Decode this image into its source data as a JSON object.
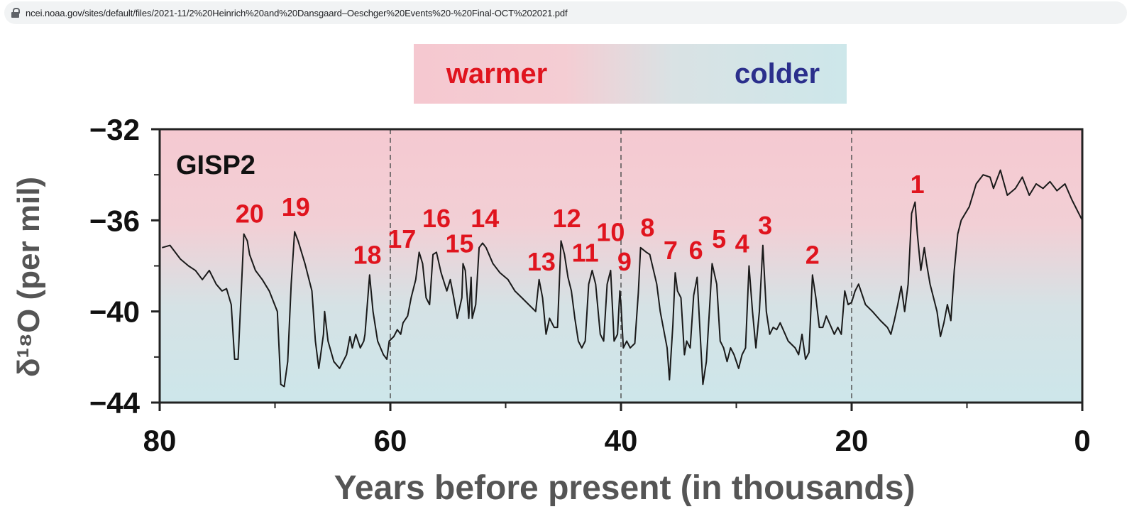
{
  "browser": {
    "url": "ncei.noaa.gov/sites/default/files/2021-11/2%20Heinrich%20and%20Dansgaard–Oeschger%20Events%20-%20Final-OCT%202021.pdf",
    "lock_icon": "lock-icon"
  },
  "chart_data": {
    "type": "line",
    "title": "GISP2",
    "legend": {
      "warm_label": "warmer",
      "cold_label": "colder",
      "placement": "top-center",
      "warm_color": "#e0141e",
      "cold_color": "#2b2f8c"
    },
    "xlabel": "Years before present (in thousands)",
    "ylabel": "δ¹⁸O (per mil)",
    "xlim": [
      80,
      0
    ],
    "ylim": [
      -44,
      -32
    ],
    "xticks": [
      {
        "v": 80,
        "label": "80"
      },
      {
        "v": 60,
        "label": "60"
      },
      {
        "v": 40,
        "label": "40"
      },
      {
        "v": 20,
        "label": "20"
      },
      {
        "v": 0,
        "label": "0"
      }
    ],
    "yticks": [
      {
        "v": -32,
        "label": "−32"
      },
      {
        "v": -36,
        "label": "−36"
      },
      {
        "v": -40,
        "label": "−40"
      },
      {
        "v": -44,
        "label": "−44"
      }
    ],
    "gridlines_x": [
      60,
      40,
      20
    ],
    "line_color": "#1a1a1a",
    "annotation_color": "#e0141e",
    "series": [
      {
        "name": "GISP2 δ¹⁸O",
        "points": [
          [
            79.8,
            -37.2
          ],
          [
            79.1,
            -37.1
          ],
          [
            78.2,
            -37.7
          ],
          [
            77.5,
            -38.0
          ],
          [
            76.9,
            -38.2
          ],
          [
            76.3,
            -38.6
          ],
          [
            75.7,
            -38.2
          ],
          [
            75.1,
            -38.8
          ],
          [
            74.6,
            -39.1
          ],
          [
            74.2,
            -39.0
          ],
          [
            73.8,
            -39.7
          ],
          [
            73.5,
            -42.1
          ],
          [
            73.2,
            -42.1
          ],
          [
            72.9,
            -38.8
          ],
          [
            72.7,
            -36.6
          ],
          [
            72.4,
            -36.9
          ],
          [
            72.2,
            -37.5
          ],
          [
            71.7,
            -38.2
          ],
          [
            71.1,
            -38.6
          ],
          [
            70.5,
            -39.1
          ],
          [
            69.8,
            -40.0
          ],
          [
            69.5,
            -43.2
          ],
          [
            69.2,
            -43.3
          ],
          [
            68.9,
            -42.2
          ],
          [
            68.6,
            -38.8
          ],
          [
            68.3,
            -36.5
          ],
          [
            68.0,
            -36.9
          ],
          [
            67.4,
            -37.9
          ],
          [
            66.8,
            -39.1
          ],
          [
            66.5,
            -41.3
          ],
          [
            66.2,
            -42.5
          ],
          [
            65.8,
            -41.0
          ],
          [
            65.7,
            -40.0
          ],
          [
            65.4,
            -41.3
          ],
          [
            64.9,
            -42.2
          ],
          [
            64.4,
            -42.5
          ],
          [
            63.8,
            -41.9
          ],
          [
            63.5,
            -41.1
          ],
          [
            63.3,
            -41.6
          ],
          [
            63.0,
            -41.0
          ],
          [
            62.6,
            -41.6
          ],
          [
            62.3,
            -41.3
          ],
          [
            62.2,
            -41.0
          ],
          [
            61.8,
            -38.4
          ],
          [
            61.5,
            -40.0
          ],
          [
            61.1,
            -41.3
          ],
          [
            60.6,
            -41.9
          ],
          [
            60.3,
            -42.1
          ],
          [
            60.1,
            -41.3
          ],
          [
            59.7,
            -41.1
          ],
          [
            59.4,
            -40.8
          ],
          [
            59.1,
            -41.0
          ],
          [
            58.9,
            -40.5
          ],
          [
            58.5,
            -40.2
          ],
          [
            58.2,
            -39.4
          ],
          [
            57.8,
            -38.6
          ],
          [
            57.5,
            -37.4
          ],
          [
            57.2,
            -37.9
          ],
          [
            56.9,
            -39.4
          ],
          [
            56.6,
            -39.7
          ],
          [
            56.3,
            -37.5
          ],
          [
            56.0,
            -37.4
          ],
          [
            55.6,
            -38.3
          ],
          [
            55.1,
            -39.1
          ],
          [
            54.8,
            -38.6
          ],
          [
            54.5,
            -39.4
          ],
          [
            54.2,
            -40.3
          ],
          [
            53.8,
            -39.4
          ],
          [
            53.7,
            -37.9
          ],
          [
            53.5,
            -38.2
          ],
          [
            53.2,
            -40.3
          ],
          [
            53.0,
            -38.5
          ],
          [
            52.9,
            -40.3
          ],
          [
            52.6,
            -39.7
          ],
          [
            52.3,
            -37.2
          ],
          [
            52.0,
            -37.0
          ],
          [
            51.7,
            -37.2
          ],
          [
            51.1,
            -37.9
          ],
          [
            50.5,
            -38.3
          ],
          [
            49.8,
            -38.6
          ],
          [
            49.2,
            -39.1
          ],
          [
            48.6,
            -39.4
          ],
          [
            48.0,
            -39.7
          ],
          [
            47.4,
            -40.0
          ],
          [
            47.1,
            -38.6
          ],
          [
            46.8,
            -39.4
          ],
          [
            46.5,
            -41.0
          ],
          [
            46.2,
            -40.3
          ],
          [
            45.8,
            -40.7
          ],
          [
            45.5,
            -40.7
          ],
          [
            45.2,
            -36.9
          ],
          [
            44.9,
            -37.5
          ],
          [
            44.6,
            -38.5
          ],
          [
            44.3,
            -39.1
          ],
          [
            44.0,
            -40.3
          ],
          [
            43.7,
            -41.3
          ],
          [
            43.4,
            -41.6
          ],
          [
            43.1,
            -41.3
          ],
          [
            42.8,
            -38.8
          ],
          [
            42.5,
            -38.2
          ],
          [
            42.2,
            -38.8
          ],
          [
            41.8,
            -41.0
          ],
          [
            41.5,
            -41.3
          ],
          [
            41.2,
            -38.8
          ],
          [
            40.9,
            -38.2
          ],
          [
            40.6,
            -41.3
          ],
          [
            40.3,
            -41.0
          ],
          [
            40.1,
            -39.1
          ],
          [
            40.0,
            -39.7
          ],
          [
            39.8,
            -41.6
          ],
          [
            39.5,
            -41.3
          ],
          [
            39.2,
            -41.6
          ],
          [
            38.8,
            -41.4
          ],
          [
            38.5,
            -39.2
          ],
          [
            38.3,
            -37.2
          ],
          [
            37.8,
            -37.4
          ],
          [
            37.5,
            -37.5
          ],
          [
            36.9,
            -38.8
          ],
          [
            36.6,
            -40.0
          ],
          [
            36.0,
            -41.6
          ],
          [
            35.8,
            -43.0
          ],
          [
            35.5,
            -40.6
          ],
          [
            35.3,
            -38.3
          ],
          [
            35.1,
            -39.1
          ],
          [
            34.8,
            -39.4
          ],
          [
            34.5,
            -41.9
          ],
          [
            34.3,
            -41.3
          ],
          [
            34.0,
            -41.6
          ],
          [
            33.7,
            -39.3
          ],
          [
            33.4,
            -38.5
          ],
          [
            33.1,
            -41.3
          ],
          [
            32.9,
            -43.2
          ],
          [
            32.6,
            -42.2
          ],
          [
            32.3,
            -39.7
          ],
          [
            32.1,
            -37.9
          ],
          [
            31.7,
            -38.8
          ],
          [
            31.4,
            -41.3
          ],
          [
            31.1,
            -41.6
          ],
          [
            30.8,
            -42.2
          ],
          [
            30.5,
            -41.6
          ],
          [
            30.2,
            -41.9
          ],
          [
            29.8,
            -42.5
          ],
          [
            29.5,
            -41.9
          ],
          [
            29.2,
            -41.6
          ],
          [
            28.9,
            -38.0
          ],
          [
            28.6,
            -40.0
          ],
          [
            28.3,
            -41.6
          ],
          [
            28.0,
            -40.0
          ],
          [
            27.7,
            -37.1
          ],
          [
            27.4,
            -40.0
          ],
          [
            27.1,
            -41.0
          ],
          [
            26.8,
            -40.7
          ],
          [
            26.5,
            -40.8
          ],
          [
            26.2,
            -40.5
          ],
          [
            25.5,
            -41.3
          ],
          [
            24.9,
            -41.6
          ],
          [
            24.6,
            -41.9
          ],
          [
            24.3,
            -41.0
          ],
          [
            24.0,
            -42.1
          ],
          [
            23.7,
            -41.8
          ],
          [
            23.4,
            -38.4
          ],
          [
            23.1,
            -39.4
          ],
          [
            22.8,
            -40.7
          ],
          [
            22.5,
            -40.7
          ],
          [
            22.2,
            -40.2
          ],
          [
            21.5,
            -41.0
          ],
          [
            21.2,
            -40.7
          ],
          [
            20.9,
            -41.0
          ],
          [
            20.6,
            -39.1
          ],
          [
            20.3,
            -39.7
          ],
          [
            20.0,
            -39.6
          ],
          [
            19.7,
            -39.1
          ],
          [
            19.4,
            -38.8
          ],
          [
            18.8,
            -39.7
          ],
          [
            18.2,
            -40.0
          ],
          [
            17.5,
            -40.4
          ],
          [
            16.9,
            -40.7
          ],
          [
            16.6,
            -41.0
          ],
          [
            16.3,
            -40.4
          ],
          [
            16.0,
            -39.7
          ],
          [
            15.7,
            -38.9
          ],
          [
            15.4,
            -40.0
          ],
          [
            15.1,
            -38.8
          ],
          [
            14.8,
            -35.7
          ],
          [
            14.5,
            -35.2
          ],
          [
            14.3,
            -36.6
          ],
          [
            14.0,
            -38.2
          ],
          [
            13.7,
            -37.2
          ],
          [
            13.5,
            -37.9
          ],
          [
            13.2,
            -38.8
          ],
          [
            12.9,
            -39.4
          ],
          [
            12.6,
            -40.0
          ],
          [
            12.3,
            -41.1
          ],
          [
            12.0,
            -40.5
          ],
          [
            11.7,
            -39.7
          ],
          [
            11.4,
            -40.4
          ],
          [
            11.1,
            -38.2
          ],
          [
            10.8,
            -36.6
          ],
          [
            10.5,
            -36.0
          ],
          [
            9.8,
            -35.4
          ],
          [
            9.2,
            -34.4
          ],
          [
            8.6,
            -34.0
          ],
          [
            8.0,
            -34.1
          ],
          [
            7.7,
            -34.6
          ],
          [
            7.1,
            -33.8
          ],
          [
            6.5,
            -34.9
          ],
          [
            5.8,
            -34.6
          ],
          [
            5.2,
            -34.1
          ],
          [
            4.6,
            -34.9
          ],
          [
            4.0,
            -34.4
          ],
          [
            3.4,
            -34.6
          ],
          [
            2.8,
            -34.3
          ],
          [
            2.2,
            -34.7
          ],
          [
            1.5,
            -34.4
          ],
          [
            0.9,
            -35.1
          ],
          [
            0.3,
            -35.7
          ],
          [
            0,
            -36.0
          ]
        ]
      }
    ],
    "annotations": [
      {
        "label": "20",
        "x": 72.2,
        "y": -35.7
      },
      {
        "label": "19",
        "x": 68.2,
        "y": -35.4
      },
      {
        "label": "18",
        "x": 62.0,
        "y": -37.5
      },
      {
        "label": "17",
        "x": 59.0,
        "y": -36.8
      },
      {
        "label": "16",
        "x": 56.0,
        "y": -35.9
      },
      {
        "label": "15",
        "x": 54.0,
        "y": -37.0
      },
      {
        "label": "14",
        "x": 51.8,
        "y": -35.9
      },
      {
        "label": "13",
        "x": 46.9,
        "y": -37.8
      },
      {
        "label": "12",
        "x": 44.7,
        "y": -35.9
      },
      {
        "label": "11",
        "x": 43.1,
        "y": -37.4
      },
      {
        "label": "10",
        "x": 40.9,
        "y": -36.5
      },
      {
        "label": "9",
        "x": 39.7,
        "y": -37.8
      },
      {
        "label": "8",
        "x": 37.7,
        "y": -36.3
      },
      {
        "label": "7",
        "x": 35.7,
        "y": -37.3
      },
      {
        "label": "6",
        "x": 33.5,
        "y": -37.3
      },
      {
        "label": "5",
        "x": 31.5,
        "y": -36.8
      },
      {
        "label": "4",
        "x": 29.5,
        "y": -37.0
      },
      {
        "label": "3",
        "x": 27.5,
        "y": -36.2
      },
      {
        "label": "2",
        "x": 23.4,
        "y": -37.5
      },
      {
        "label": "1",
        "x": 14.3,
        "y": -34.4
      }
    ]
  }
}
